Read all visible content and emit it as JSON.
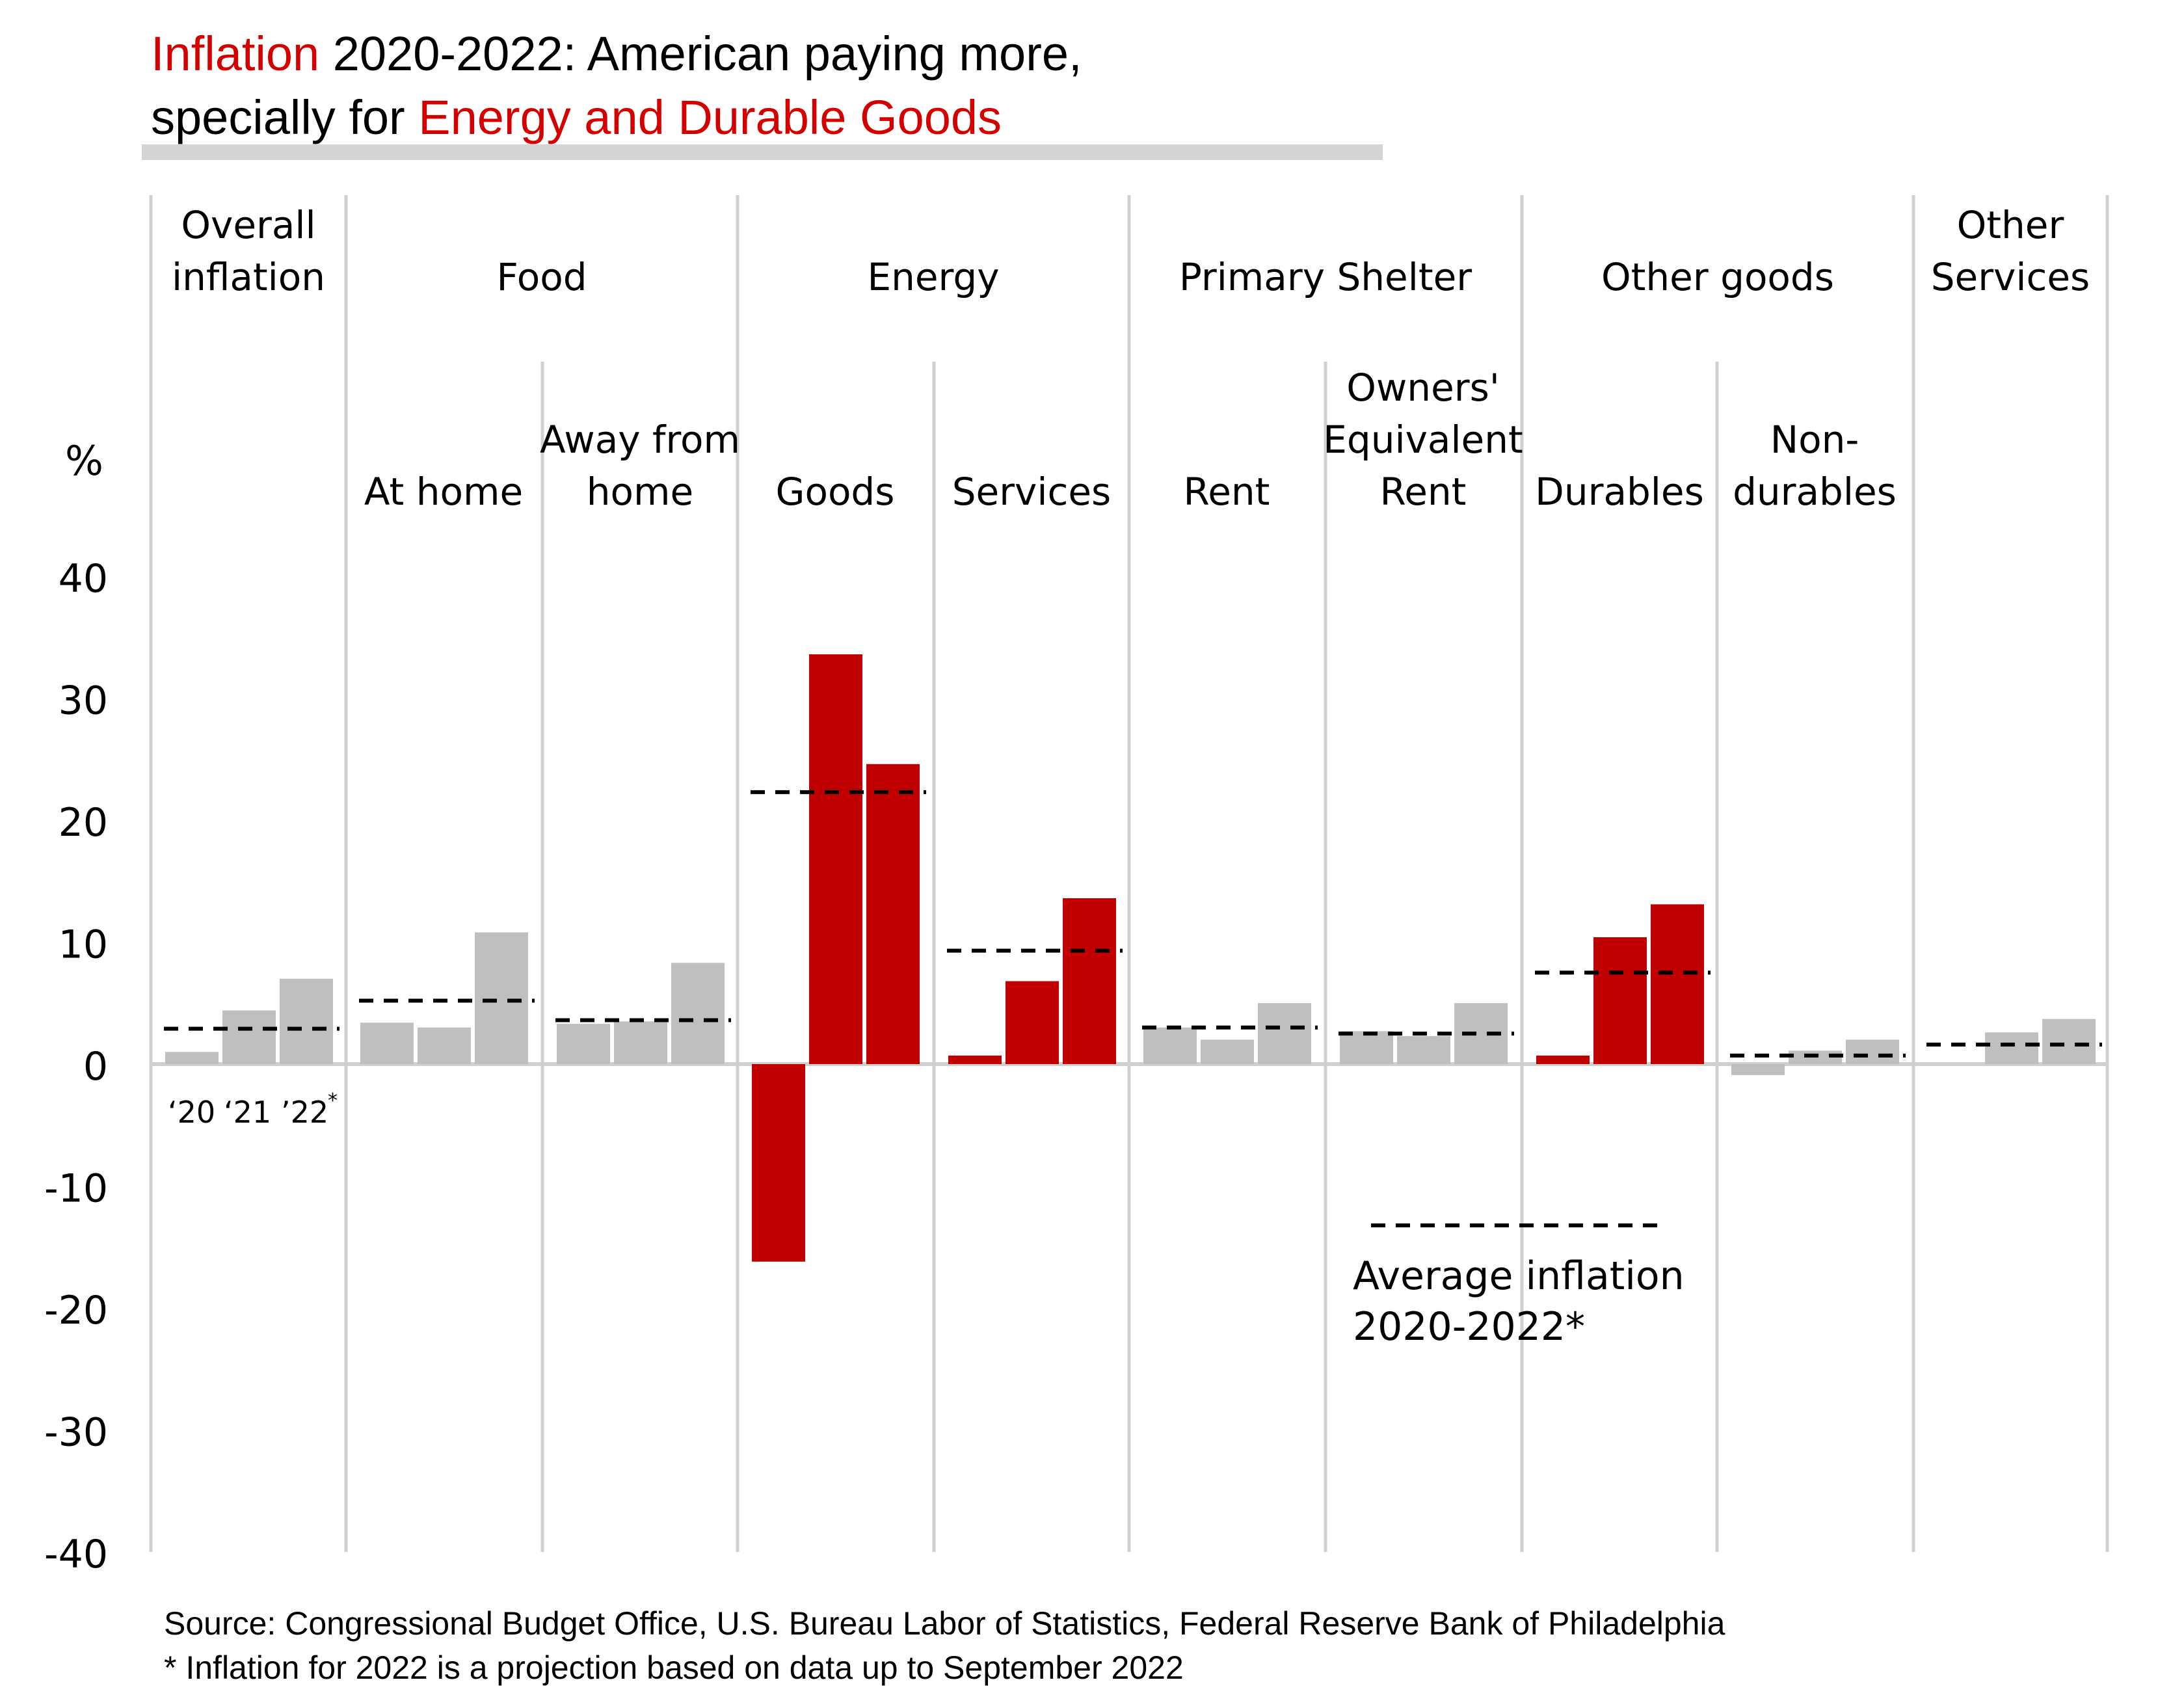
{
  "title": {
    "line1_part1": "Inflation",
    "line1_part2": " 2020-2022: American paying more,",
    "line2_part1": "specially for ",
    "line2_part2": "Energy and Durable Goods"
  },
  "colors": {
    "highlight_red": "#d40000",
    "bar_red": "#c00000",
    "bar_gray": "#bfbfbf",
    "grid_gray": "#d0d0d0",
    "title_rule": "#d4d4d4"
  },
  "chart_data": {
    "type": "bar",
    "ylabel": "%",
    "ylim": [
      -40,
      40
    ],
    "yticks": [
      "40",
      "30",
      "20",
      "10",
      "0",
      "-10",
      "-20",
      "-30",
      "-40"
    ],
    "year_labels": [
      "‘20",
      "‘21",
      "’22"
    ],
    "year_label_note": "*",
    "legend_line_label": "Average inflation",
    "legend_line_label2": "2020-2022*",
    "groups": [
      {
        "header": [
          "Overall",
          "inflation"
        ],
        "categories": [
          {
            "label": [],
            "values": [
              1.0,
              4.4,
              7.0
            ],
            "average": 2.9,
            "highlight": false
          }
        ]
      },
      {
        "header": [
          "Food"
        ],
        "categories": [
          {
            "label": [
              "At home"
            ],
            "values": [
              3.4,
              3.0,
              10.8
            ],
            "average": 5.2,
            "highlight": false
          },
          {
            "label": [
              "Away from",
              "home"
            ],
            "values": [
              3.3,
              3.5,
              8.3
            ],
            "average": 3.6,
            "highlight": false
          }
        ]
      },
      {
        "header": [
          "Energy"
        ],
        "categories": [
          {
            "label": [
              "Goods"
            ],
            "values": [
              -16.2,
              33.6,
              24.6
            ],
            "average": 22.3,
            "highlight": true
          },
          {
            "label": [
              "Services"
            ],
            "values": [
              0.7,
              6.8,
              13.6
            ],
            "average": 9.3,
            "highlight": true
          }
        ]
      },
      {
        "header": [
          "Primary Shelter"
        ],
        "categories": [
          {
            "label": [
              "Rent"
            ],
            "values": [
              3.0,
              2.0,
              5.0
            ],
            "average": 3.0,
            "highlight": false
          },
          {
            "label": [
              "Owners'",
              "Equivalent",
              "Rent"
            ],
            "values": [
              2.7,
              2.3,
              5.0
            ],
            "average": 2.5,
            "highlight": false
          }
        ]
      },
      {
        "header": [
          "Other goods"
        ],
        "categories": [
          {
            "label": [
              "Durables"
            ],
            "values": [
              0.7,
              10.4,
              13.1
            ],
            "average": 7.5,
            "highlight": true
          },
          {
            "label": [
              "Non-",
              "durables"
            ],
            "values": [
              -0.9,
              1.1,
              2.0
            ],
            "average": 0.7,
            "highlight": false
          }
        ]
      },
      {
        "header": [
          "Other",
          "Services"
        ],
        "categories": [
          {
            "label": [],
            "values": [
              0.0,
              2.6,
              3.7
            ],
            "average": 1.6,
            "highlight": false
          }
        ]
      }
    ]
  },
  "footnotes": {
    "source": "Source: Congressional Budget Office, U.S. Bureau Labor of Statistics, Federal Reserve Bank of Philadelphia",
    "note": "* Inflation for 2022 is a projection based on data up to September 2022"
  }
}
